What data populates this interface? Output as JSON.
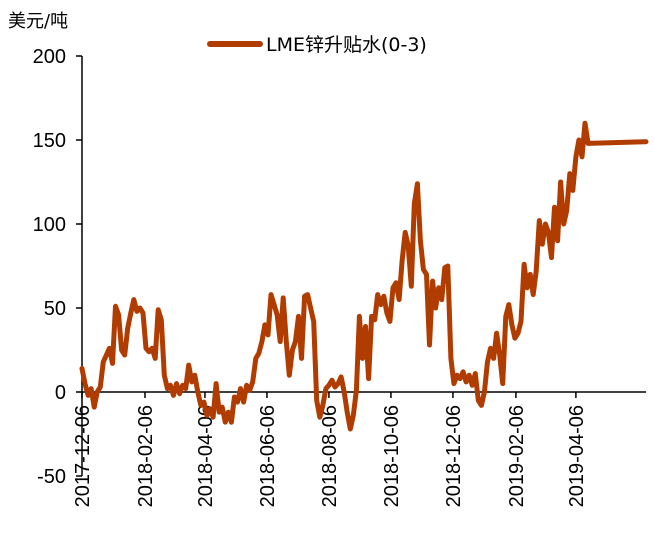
{
  "chart_data": {
    "type": "line",
    "unit_label": "美元/吨",
    "legend_position": "top-center",
    "grid": false,
    "ylim": [
      -50,
      200
    ],
    "y_ticks": [
      200,
      150,
      100,
      50,
      0,
      -50
    ],
    "x_ticks": [
      "2017-12-06",
      "2018-02-06",
      "2018-04-06",
      "2018-06-06",
      "2018-08-06",
      "2018-10-06",
      "2018-12-06",
      "2019-02-06",
      "2019-04-06"
    ],
    "x_range": [
      "2017-12-06",
      "2019-06-14"
    ],
    "series": [
      {
        "name": "LME锌升贴水(0-3)",
        "color": "#b13c00",
        "points": [
          [
            "2017-12-06",
            14
          ],
          [
            "2017-12-09",
            5
          ],
          [
            "2017-12-12",
            -2
          ],
          [
            "2017-12-15",
            2
          ],
          [
            "2017-12-18",
            -9
          ],
          [
            "2017-12-21",
            0
          ],
          [
            "2017-12-24",
            3
          ],
          [
            "2017-12-27",
            18
          ],
          [
            "2017-12-30",
            22
          ],
          [
            "2018-01-02",
            26
          ],
          [
            "2018-01-05",
            17
          ],
          [
            "2018-01-08",
            51
          ],
          [
            "2018-01-11",
            46
          ],
          [
            "2018-01-14",
            25
          ],
          [
            "2018-01-17",
            22
          ],
          [
            "2018-01-20",
            38
          ],
          [
            "2018-01-23",
            47
          ],
          [
            "2018-01-26",
            55
          ],
          [
            "2018-01-29",
            48
          ],
          [
            "2018-02-01",
            50
          ],
          [
            "2018-02-04",
            47
          ],
          [
            "2018-02-07",
            26
          ],
          [
            "2018-02-10",
            24
          ],
          [
            "2018-02-13",
            26
          ],
          [
            "2018-02-16",
            20
          ],
          [
            "2018-02-19",
            49
          ],
          [
            "2018-02-22",
            43
          ],
          [
            "2018-02-25",
            10
          ],
          [
            "2018-02-28",
            2
          ],
          [
            "2018-03-03",
            4
          ],
          [
            "2018-03-06",
            -2
          ],
          [
            "2018-03-09",
            5
          ],
          [
            "2018-03-12",
            -1
          ],
          [
            "2018-03-15",
            4
          ],
          [
            "2018-03-18",
            2
          ],
          [
            "2018-03-21",
            16
          ],
          [
            "2018-03-24",
            6
          ],
          [
            "2018-03-27",
            10
          ],
          [
            "2018-03-30",
            0
          ],
          [
            "2018-04-02",
            -8
          ],
          [
            "2018-04-05",
            -6
          ],
          [
            "2018-04-08",
            -14
          ],
          [
            "2018-04-11",
            -10
          ],
          [
            "2018-04-14",
            -15
          ],
          [
            "2018-04-17",
            5
          ],
          [
            "2018-04-20",
            -12
          ],
          [
            "2018-04-23",
            -9
          ],
          [
            "2018-04-26",
            -18
          ],
          [
            "2018-04-29",
            -12
          ],
          [
            "2018-05-02",
            -18
          ],
          [
            "2018-05-05",
            -3
          ],
          [
            "2018-05-08",
            -6
          ],
          [
            "2018-05-11",
            2
          ],
          [
            "2018-05-14",
            -6
          ],
          [
            "2018-05-17",
            4
          ],
          [
            "2018-05-20",
            1
          ],
          [
            "2018-05-23",
            6
          ],
          [
            "2018-05-26",
            20
          ],
          [
            "2018-05-29",
            23
          ],
          [
            "2018-06-01",
            30
          ],
          [
            "2018-06-04",
            40
          ],
          [
            "2018-06-07",
            34
          ],
          [
            "2018-06-10",
            58
          ],
          [
            "2018-06-13",
            52
          ],
          [
            "2018-06-16",
            46
          ],
          [
            "2018-06-19",
            30
          ],
          [
            "2018-06-22",
            56
          ],
          [
            "2018-06-25",
            30
          ],
          [
            "2018-06-28",
            10
          ],
          [
            "2018-07-01",
            25
          ],
          [
            "2018-07-04",
            30
          ],
          [
            "2018-07-07",
            45
          ],
          [
            "2018-07-10",
            20
          ],
          [
            "2018-07-13",
            57
          ],
          [
            "2018-07-16",
            58
          ],
          [
            "2018-07-19",
            50
          ],
          [
            "2018-07-22",
            42
          ],
          [
            "2018-07-25",
            -5
          ],
          [
            "2018-07-28",
            -15
          ],
          [
            "2018-07-31",
            -8
          ],
          [
            "2018-08-03",
            2
          ],
          [
            "2018-08-06",
            4
          ],
          [
            "2018-08-09",
            7
          ],
          [
            "2018-08-12",
            3
          ],
          [
            "2018-08-15",
            5
          ],
          [
            "2018-08-18",
            9
          ],
          [
            "2018-08-21",
            0
          ],
          [
            "2018-08-24",
            -12
          ],
          [
            "2018-08-27",
            -22
          ],
          [
            "2018-08-30",
            -14
          ],
          [
            "2018-09-02",
            1
          ],
          [
            "2018-09-05",
            45
          ],
          [
            "2018-09-08",
            20
          ],
          [
            "2018-09-11",
            39
          ],
          [
            "2018-09-14",
            8
          ],
          [
            "2018-09-17",
            45
          ],
          [
            "2018-09-20",
            43
          ],
          [
            "2018-09-23",
            58
          ],
          [
            "2018-09-26",
            52
          ],
          [
            "2018-09-29",
            57
          ],
          [
            "2018-10-02",
            47
          ],
          [
            "2018-10-05",
            42
          ],
          [
            "2018-10-08",
            62
          ],
          [
            "2018-10-11",
            65
          ],
          [
            "2018-10-14",
            55
          ],
          [
            "2018-10-17",
            78
          ],
          [
            "2018-10-20",
            95
          ],
          [
            "2018-10-23",
            87
          ],
          [
            "2018-10-26",
            63
          ],
          [
            "2018-10-29",
            112
          ],
          [
            "2018-11-01",
            124
          ],
          [
            "2018-11-04",
            90
          ],
          [
            "2018-11-07",
            73
          ],
          [
            "2018-11-10",
            70
          ],
          [
            "2018-11-13",
            28
          ],
          [
            "2018-11-16",
            66
          ],
          [
            "2018-11-19",
            50
          ],
          [
            "2018-11-22",
            62
          ],
          [
            "2018-11-25",
            55
          ],
          [
            "2018-11-28",
            74
          ],
          [
            "2018-12-01",
            75
          ],
          [
            "2018-12-04",
            20
          ],
          [
            "2018-12-07",
            5
          ],
          [
            "2018-12-10",
            10
          ],
          [
            "2018-12-13",
            8
          ],
          [
            "2018-12-16",
            12
          ],
          [
            "2018-12-19",
            6
          ],
          [
            "2018-12-22",
            10
          ],
          [
            "2018-12-25",
            4
          ],
          [
            "2018-12-28",
            11
          ],
          [
            "2018-12-31",
            -5
          ],
          [
            "2019-01-03",
            -8
          ],
          [
            "2019-01-06",
            0
          ],
          [
            "2019-01-09",
            18
          ],
          [
            "2019-01-12",
            26
          ],
          [
            "2019-01-15",
            20
          ],
          [
            "2019-01-18",
            35
          ],
          [
            "2019-01-21",
            22
          ],
          [
            "2019-01-24",
            5
          ],
          [
            "2019-01-27",
            45
          ],
          [
            "2019-01-30",
            52
          ],
          [
            "2019-02-02",
            40
          ],
          [
            "2019-02-05",
            32
          ],
          [
            "2019-02-08",
            35
          ],
          [
            "2019-02-11",
            42
          ],
          [
            "2019-02-14",
            76
          ],
          [
            "2019-02-17",
            62
          ],
          [
            "2019-02-20",
            70
          ],
          [
            "2019-02-23",
            58
          ],
          [
            "2019-02-26",
            72
          ],
          [
            "2019-03-01",
            102
          ],
          [
            "2019-03-04",
            88
          ],
          [
            "2019-03-07",
            100
          ],
          [
            "2019-03-10",
            95
          ],
          [
            "2019-03-13",
            80
          ],
          [
            "2019-03-16",
            110
          ],
          [
            "2019-03-19",
            90
          ],
          [
            "2019-03-22",
            125
          ],
          [
            "2019-03-25",
            100
          ],
          [
            "2019-03-28",
            108
          ],
          [
            "2019-03-31",
            130
          ],
          [
            "2019-04-03",
            120
          ],
          [
            "2019-04-06",
            140
          ],
          [
            "2019-04-09",
            150
          ],
          [
            "2019-04-12",
            140
          ],
          [
            "2019-04-15",
            160
          ],
          [
            "2019-04-18",
            148
          ],
          [
            "2019-06-14",
            149
          ]
        ]
      }
    ]
  }
}
